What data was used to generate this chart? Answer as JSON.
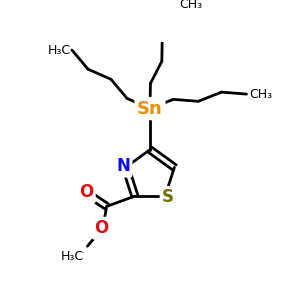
{
  "bg_color": "#ffffff",
  "sn_color": "#E8900A",
  "n_color": "#1010E0",
  "s_color": "#707000",
  "o_color": "#E01010",
  "c_color": "#000000",
  "bond_color": "#000000",
  "bond_lw": 2.0,
  "font_size_atom": 12,
  "font_size_small": 9,
  "sn_label": "Sn",
  "n_label": "N",
  "s_label": "S",
  "o_label": "O",
  "ch3_label": "CH₃",
  "h3c_label": "H₃C"
}
